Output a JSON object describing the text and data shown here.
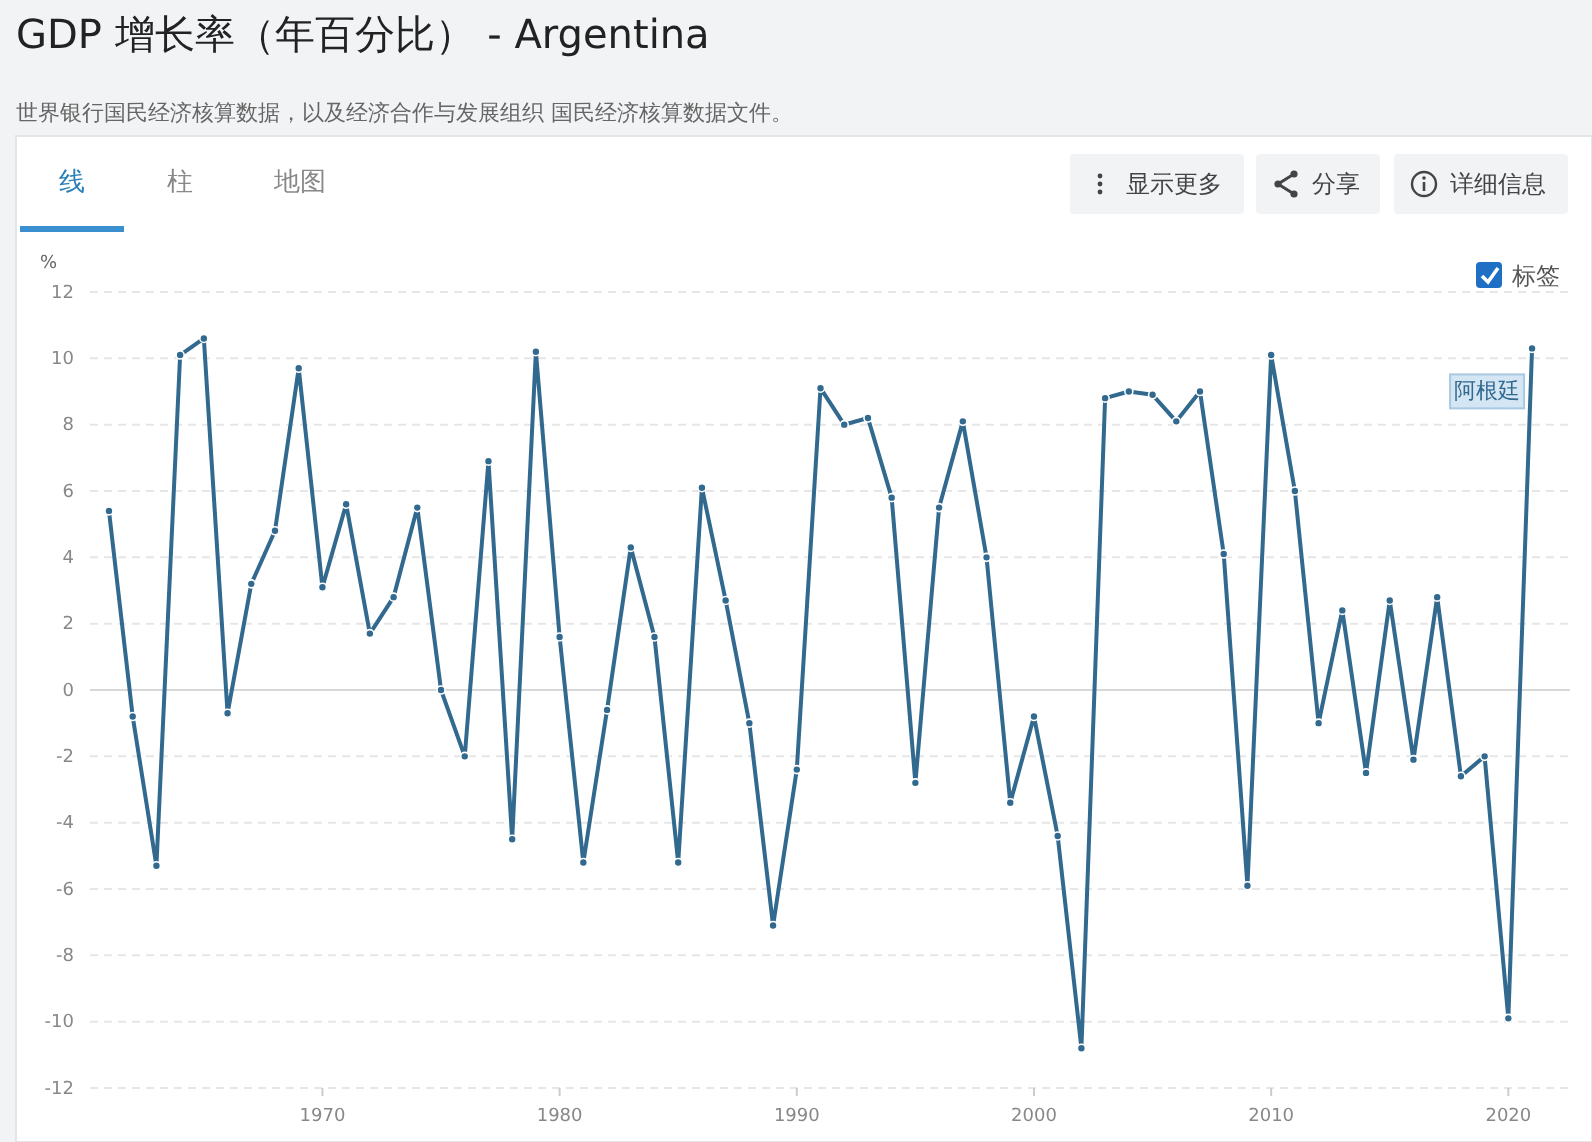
{
  "chart_data": {
    "type": "line",
    "title": "GDP 增长率（年百分比） - Argentina",
    "subtitle": "世界银行国民经济核算数据，以及经济合作与发展组织 国民经济核算数据文件。",
    "ylabel": "%",
    "annotations": [
      "线",
      "柱",
      "地图",
      "显示更多",
      "分享",
      "详细信息",
      "标签"
    ],
    "x": [
      1961,
      1962,
      1963,
      1964,
      1965,
      1966,
      1967,
      1968,
      1969,
      1970,
      1971,
      1972,
      1973,
      1974,
      1975,
      1976,
      1977,
      1978,
      1979,
      1980,
      1981,
      1982,
      1983,
      1984,
      1985,
      1986,
      1987,
      1988,
      1989,
      1990,
      1991,
      1992,
      1993,
      1994,
      1995,
      1996,
      1997,
      1998,
      1999,
      2000,
      2001,
      2002,
      2003,
      2004,
      2005,
      2006,
      2007,
      2008,
      2009,
      2010,
      2011,
      2012,
      2013,
      2014,
      2015,
      2016,
      2017,
      2018,
      2019,
      2020,
      2021
    ],
    "series": [
      {
        "name": "阿根廷",
        "color": "#32698f",
        "values": [
          5.4,
          -0.8,
          -5.3,
          10.1,
          10.6,
          -0.7,
          3.2,
          4.8,
          9.7,
          3.1,
          5.6,
          1.7,
          2.8,
          5.5,
          0.0,
          -2.0,
          6.9,
          -4.5,
          10.2,
          1.6,
          -5.2,
          -0.6,
          4.3,
          1.6,
          -5.2,
          6.1,
          2.7,
          -1.0,
          -7.1,
          -2.4,
          9.1,
          8.0,
          8.2,
          5.8,
          -2.8,
          5.5,
          8.1,
          4.0,
          -3.4,
          -0.8,
          -4.4,
          -10.8,
          8.8,
          9.0,
          8.9,
          8.1,
          9.0,
          4.1,
          -5.9,
          10.1,
          6.0,
          -1.0,
          2.4,
          -2.5,
          2.7,
          -2.1,
          2.8,
          -2.6,
          -2.0,
          -9.9,
          10.3
        ]
      }
    ],
    "xlim": [
      1960.2,
      2022.6
    ],
    "xticks": [
      1970,
      1980,
      1990,
      2000,
      2010,
      2020
    ],
    "ylim": [
      -12,
      12
    ],
    "yticks": [
      -12,
      -10,
      -8,
      -6,
      -4,
      -2,
      0,
      2,
      4,
      6,
      8,
      10,
      12
    ],
    "grid": "y",
    "marker": "circle",
    "line_style": "solid"
  }
}
